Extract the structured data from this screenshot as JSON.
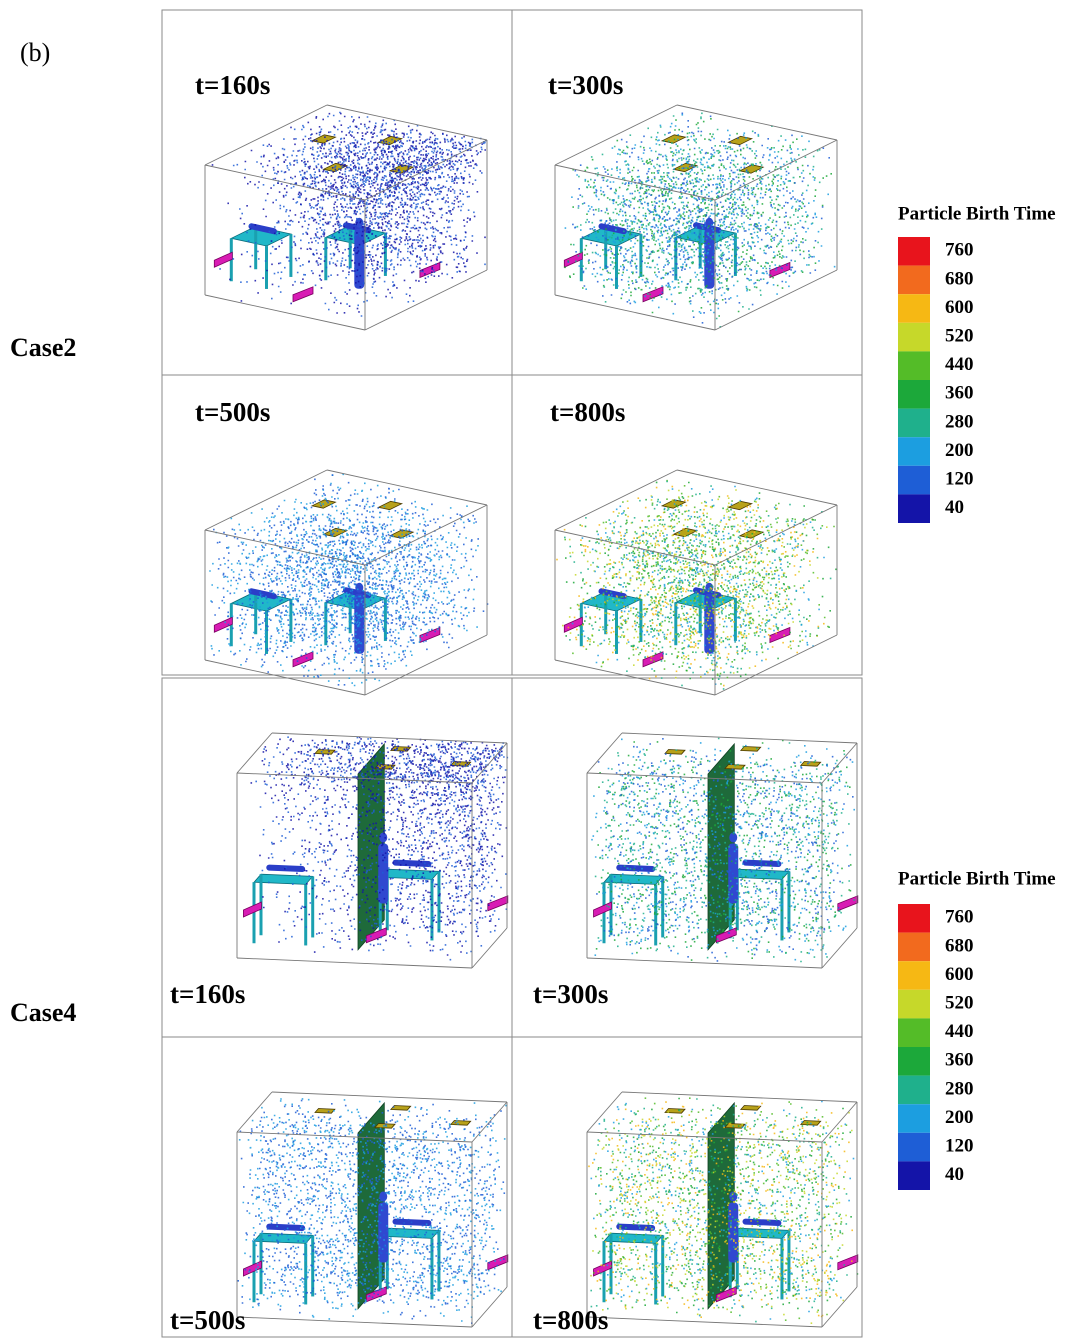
{
  "panel_label": "(b)",
  "cases": [
    {
      "label": "Case2",
      "frames": [
        "t=160s",
        "t=300s",
        "t=500s",
        "t=800s"
      ]
    },
    {
      "label": "Case4",
      "frames": [
        "t=160s",
        "t=300s",
        "t=500s",
        "t=800s"
      ]
    }
  ],
  "colorbar": {
    "title": "Particle Birth Time",
    "levels": [
      760,
      680,
      600,
      520,
      440,
      360,
      280,
      200,
      120,
      40
    ],
    "colors": [
      "#e8141c",
      "#f26a1e",
      "#f6b814",
      "#c6d82a",
      "#54bc28",
      "#1ca83a",
      "#1fb08c",
      "#1c9ee0",
      "#1e5ed6",
      "#1414a8"
    ]
  }
}
